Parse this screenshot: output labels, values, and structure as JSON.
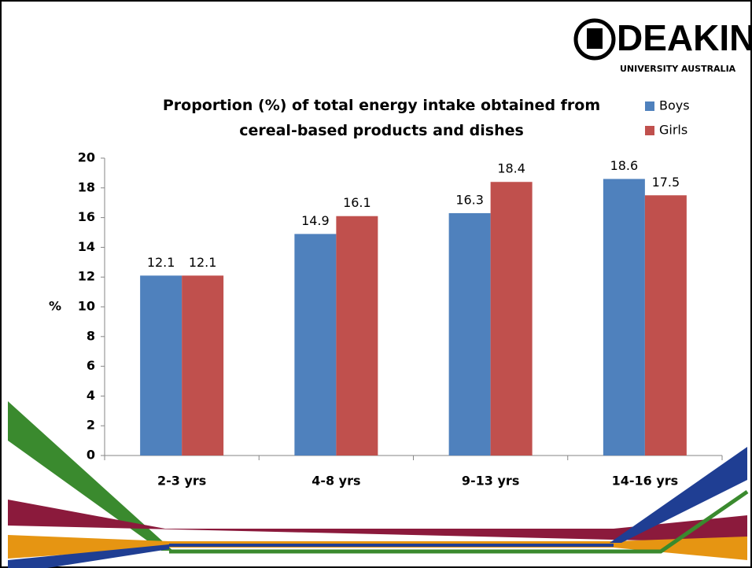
{
  "logo": {
    "name": "DEAKIN",
    "subtitle": "UNIVERSITY AUSTRALIA"
  },
  "chart_data": {
    "type": "bar",
    "title": "Proportion (%) of total energy intake obtained from cereal-based products and dishes",
    "y_label": "%",
    "categories": [
      "2-3 yrs",
      "4-8 yrs",
      "9-13 yrs",
      "14-16 yrs"
    ],
    "series": [
      {
        "name": "Boys",
        "color": "#4f81bd",
        "values": [
          12.1,
          14.9,
          16.3,
          18.6
        ]
      },
      {
        "name": "Girls",
        "color": "#c0504d",
        "values": [
          12.1,
          16.1,
          18.4,
          17.5
        ]
      }
    ],
    "ylim": [
      0,
      20
    ],
    "yticks": [
      0,
      2,
      4,
      6,
      8,
      10,
      12,
      14,
      16,
      18,
      20
    ],
    "grid": false,
    "legend": "top-right"
  }
}
